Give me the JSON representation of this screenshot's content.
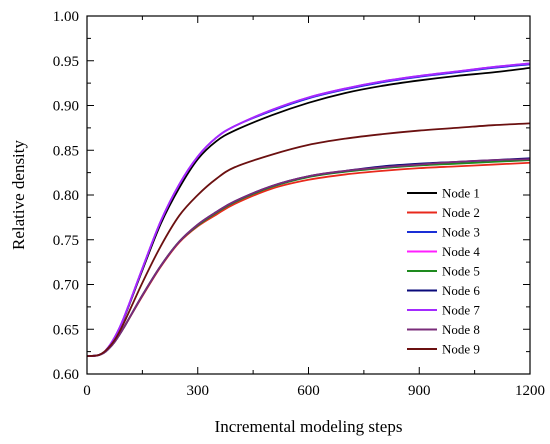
{
  "chart_data": {
    "type": "line",
    "xlabel": "Incremental modeling steps",
    "ylabel": "Relative density",
    "xlim": [
      0,
      1200
    ],
    "ylim": [
      0.6,
      1.0
    ],
    "x_ticks": [
      0,
      300,
      600,
      900,
      1200
    ],
    "x_tick_labels": [
      "0",
      "300",
      "600",
      "900",
      "1200"
    ],
    "y_ticks": [
      0.6,
      0.65,
      0.7,
      0.75,
      0.8,
      0.85,
      0.9,
      0.95,
      1.0
    ],
    "y_tick_labels": [
      "0.60",
      "0.65",
      "0.70",
      "0.75",
      "0.80",
      "0.85",
      "0.90",
      "0.95",
      "1.00"
    ],
    "grid": false,
    "legend_position": "bottom-right",
    "x": [
      0,
      30,
      50,
      75,
      100,
      150,
      200,
      250,
      300,
      350,
      400,
      500,
      600,
      700,
      800,
      900,
      1000,
      1100,
      1200
    ],
    "series": [
      {
        "name": "Node 1",
        "color": "#000000",
        "values": [
          0.62,
          0.621,
          0.626,
          0.64,
          0.662,
          0.716,
          0.768,
          0.808,
          0.84,
          0.86,
          0.872,
          0.889,
          0.903,
          0.914,
          0.922,
          0.928,
          0.933,
          0.937,
          0.942
        ]
      },
      {
        "name": "Node 2",
        "color": "#e8291c",
        "values": [
          0.62,
          0.621,
          0.625,
          0.636,
          0.652,
          0.687,
          0.72,
          0.747,
          0.765,
          0.778,
          0.79,
          0.807,
          0.817,
          0.823,
          0.827,
          0.83,
          0.832,
          0.834,
          0.836
        ]
      },
      {
        "name": "Node 3",
        "color": "#1a2fd6",
        "values": [
          0.62,
          0.621,
          0.626,
          0.641,
          0.663,
          0.718,
          0.771,
          0.812,
          0.843,
          0.864,
          0.877,
          0.894,
          0.908,
          0.918,
          0.926,
          0.932,
          0.937,
          0.942,
          0.946
        ]
      },
      {
        "name": "Node 4",
        "color": "#ff1fff",
        "values": [
          0.62,
          0.621,
          0.626,
          0.641,
          0.663,
          0.718,
          0.771,
          0.812,
          0.843,
          0.864,
          0.877,
          0.895,
          0.909,
          0.919,
          0.927,
          0.933,
          0.938,
          0.943,
          0.947
        ]
      },
      {
        "name": "Node 5",
        "color": "#1e8a1e",
        "values": [
          0.62,
          0.621,
          0.625,
          0.636,
          0.652,
          0.688,
          0.721,
          0.748,
          0.766,
          0.78,
          0.792,
          0.809,
          0.82,
          0.826,
          0.83,
          0.833,
          0.835,
          0.837,
          0.839
        ]
      },
      {
        "name": "Node 6",
        "color": "#0a0a7a",
        "values": [
          0.62,
          0.621,
          0.625,
          0.636,
          0.652,
          0.688,
          0.721,
          0.748,
          0.767,
          0.781,
          0.793,
          0.81,
          0.821,
          0.827,
          0.832,
          0.835,
          0.837,
          0.839,
          0.841
        ]
      },
      {
        "name": "Node 7",
        "color": "#a32aff",
        "values": [
          0.62,
          0.621,
          0.626,
          0.641,
          0.663,
          0.718,
          0.771,
          0.812,
          0.843,
          0.864,
          0.877,
          0.895,
          0.909,
          0.919,
          0.927,
          0.933,
          0.938,
          0.943,
          0.947
        ]
      },
      {
        "name": "Node 8",
        "color": "#7a2c7a",
        "values": [
          0.62,
          0.621,
          0.625,
          0.636,
          0.652,
          0.688,
          0.721,
          0.748,
          0.767,
          0.781,
          0.793,
          0.81,
          0.821,
          0.827,
          0.831,
          0.834,
          0.837,
          0.839,
          0.84
        ]
      },
      {
        "name": "Node 9",
        "color": "#6b1010",
        "values": [
          0.62,
          0.621,
          0.626,
          0.638,
          0.657,
          0.702,
          0.743,
          0.777,
          0.8,
          0.818,
          0.831,
          0.845,
          0.856,
          0.863,
          0.868,
          0.872,
          0.875,
          0.878,
          0.88
        ]
      }
    ]
  }
}
